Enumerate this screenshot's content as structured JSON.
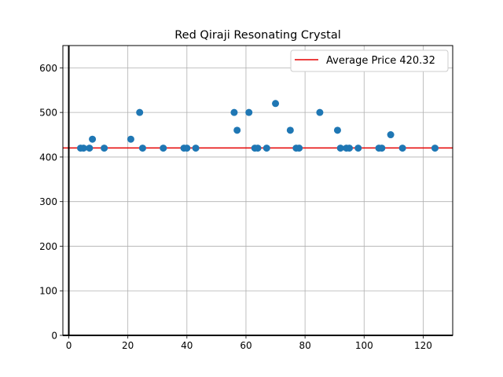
{
  "chart_data": {
    "type": "scatter",
    "title": "Red Qiraji Resonating Crystal",
    "xlabel": "",
    "ylabel": "",
    "xlim": [
      -2,
      130
    ],
    "ylim": [
      0,
      650
    ],
    "xticks": [
      0,
      20,
      40,
      60,
      80,
      100,
      120
    ],
    "yticks": [
      0,
      100,
      200,
      300,
      400,
      500,
      600
    ],
    "grid": true,
    "legend_position": "upper right",
    "point_color": "#1f77b4",
    "series": [
      {
        "points": [
          [
            4,
            420
          ],
          [
            5,
            420
          ],
          [
            7,
            420
          ],
          [
            8,
            440
          ],
          [
            12,
            420
          ],
          [
            21,
            440
          ],
          [
            24,
            500
          ],
          [
            25,
            420
          ],
          [
            32,
            420
          ],
          [
            39,
            420
          ],
          [
            40,
            420
          ],
          [
            43,
            420
          ],
          [
            56,
            500
          ],
          [
            57,
            460
          ],
          [
            61,
            500
          ],
          [
            63,
            420
          ],
          [
            64,
            420
          ],
          [
            67,
            420
          ],
          [
            70,
            520
          ],
          [
            75,
            460
          ],
          [
            77,
            420
          ],
          [
            78,
            420
          ],
          [
            85,
            500
          ],
          [
            91,
            460
          ],
          [
            92,
            420
          ],
          [
            94,
            420
          ],
          [
            95,
            420
          ],
          [
            98,
            420
          ],
          [
            105,
            420
          ],
          [
            106,
            420
          ],
          [
            109,
            450
          ],
          [
            113,
            420
          ],
          [
            124,
            420
          ]
        ]
      }
    ],
    "reference_lines": [
      {
        "orientation": "horizontal",
        "value": 420.32,
        "label": "Average Price 420.32",
        "color": "#e50000"
      },
      {
        "orientation": "vertical",
        "value": 0,
        "color": "#000000"
      },
      {
        "orientation": "horizontal",
        "value": 0,
        "color": "#000000"
      }
    ]
  }
}
